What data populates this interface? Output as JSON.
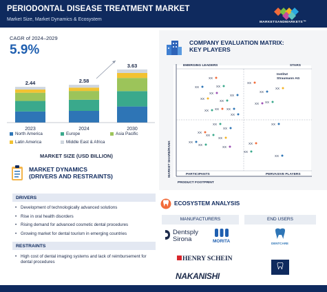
{
  "header": {
    "title": "PERIODONTAL DISEASE TREATMENT MARKET",
    "subtitle": "Market Size, Market Dynamics & Ecosystem",
    "logo_text": "MARKETSANDMARKETS™"
  },
  "cagr": {
    "label": "CAGR of 2024–2029",
    "value": "5.9%"
  },
  "chart_data": {
    "type": "bar",
    "stacked": true,
    "title": "MARKET SIZE (USD BILLION)",
    "categories": [
      "2023",
      "2024",
      "2030"
    ],
    "totals": [
      "2.44",
      "2.58",
      "3.63"
    ],
    "ylim": [
      0,
      4
    ],
    "series": [
      {
        "name": "North America",
        "color": "#2e75b6",
        "values": [
          0.76,
          0.8,
          1.1
        ]
      },
      {
        "name": "Europe",
        "color": "#3aa98c",
        "values": [
          0.72,
          0.76,
          1.05
        ]
      },
      {
        "name": "Asia Pacific",
        "color": "#9cc45a",
        "values": [
          0.56,
          0.6,
          0.9
        ]
      },
      {
        "name": "Latin America",
        "color": "#f2c232",
        "values": [
          0.22,
          0.23,
          0.34
        ]
      },
      {
        "name": "Middle East & Africa",
        "color": "#cfd6de",
        "values": [
          0.18,
          0.19,
          0.24
        ]
      }
    ],
    "legend_position": "bottom",
    "grid": false
  },
  "dynamics": {
    "title_line1": "MARKET DYNAMICS",
    "title_line2": "(DRIVERS AND RESTRAINTS)",
    "drivers_label": "DRIVERS",
    "drivers": [
      "Development of technologically advanced solutions",
      "Rise in oral health disorders",
      "Rising demand for advanced cosmetic dental procedures",
      "Growing market for dental tourism in emerging countries"
    ],
    "restraints_label": "RESTRAINTS",
    "restraints": [
      "High cost of dental imaging systems and lack of reimbursement for dental procedures"
    ]
  },
  "matrix": {
    "title_line1": "COMPANY EVALUATION MATRIX:",
    "title_line2": "KEY PLAYERS",
    "q_tl": "EMERGING LEADERS",
    "q_tr": "STARS",
    "q_bl": "PARTICIPANTS",
    "q_br": "PERVASIVE PLAYERS",
    "y_axis": "MARKET SHARE/RANK",
    "x_axis": "PRODUCT FOOTPRINT",
    "highlight_line1": "Institut",
    "highlight_line2": "Straumann AG",
    "point_label": "XX"
  },
  "ecosystem": {
    "title": "ECOSYSTEM ANALYSIS",
    "manufacturers_label": "MANUFACTURERS",
    "end_users_label": "END USERS",
    "brands": {
      "dentsply1": "Dentsply",
      "dentsply2": "Sirona",
      "morita": "MORITA",
      "henryschein": "HENRY SCHEIN",
      "nakanishi": "NAKANISHI",
      "dentcare": "DENTCARE"
    }
  }
}
